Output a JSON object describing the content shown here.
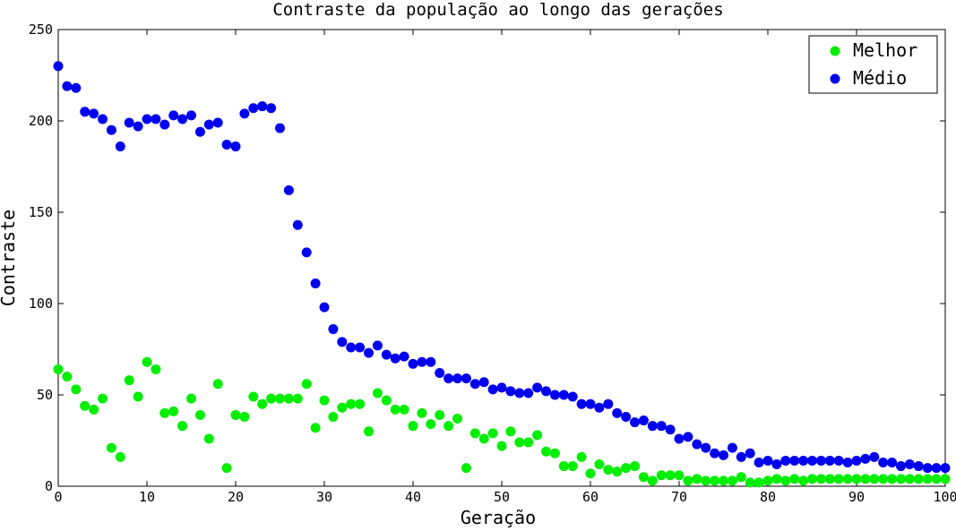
{
  "chart_data": {
    "type": "scatter",
    "title": "Contraste da população ao longo das gerações",
    "xlabel": "Geração",
    "ylabel": "Contraste",
    "xlim": [
      0,
      100
    ],
    "ylim": [
      0,
      250
    ],
    "xticks": [
      "0",
      "10",
      "20",
      "30",
      "40",
      "50",
      "60",
      "70",
      "80",
      "90",
      "100"
    ],
    "yticks": [
      "0",
      "50",
      "100",
      "150",
      "200",
      "250"
    ],
    "grid": false,
    "legend_position": "top-right",
    "x": [
      0,
      1,
      2,
      3,
      4,
      5,
      6,
      7,
      8,
      9,
      10,
      11,
      12,
      13,
      14,
      15,
      16,
      17,
      18,
      19,
      20,
      21,
      22,
      23,
      24,
      25,
      26,
      27,
      28,
      29,
      30,
      31,
      32,
      33,
      34,
      35,
      36,
      37,
      38,
      39,
      40,
      41,
      42,
      43,
      44,
      45,
      46,
      47,
      48,
      49,
      50,
      51,
      52,
      53,
      54,
      55,
      56,
      57,
      58,
      59,
      60,
      61,
      62,
      63,
      64,
      65,
      66,
      67,
      68,
      69,
      70,
      71,
      72,
      73,
      74,
      75,
      76,
      77,
      78,
      79,
      80,
      81,
      82,
      83,
      84,
      85,
      86,
      87,
      88,
      89,
      90,
      91,
      92,
      93,
      94,
      95,
      96,
      97,
      98,
      99,
      100
    ],
    "series": [
      {
        "name": "Melhor",
        "color": "#00ee00",
        "values": [
          64,
          60,
          53,
          44,
          42,
          48,
          21,
          16,
          58,
          49,
          68,
          64,
          40,
          41,
          33,
          48,
          39,
          26,
          56,
          10,
          39,
          38,
          49,
          45,
          48,
          48,
          48,
          48,
          56,
          32,
          47,
          38,
          43,
          45,
          45,
          30,
          51,
          47,
          42,
          42,
          33,
          40,
          34,
          39,
          33,
          37,
          10,
          29,
          26,
          29,
          22,
          30,
          24,
          24,
          28,
          19,
          18,
          11,
          11,
          16,
          7,
          12,
          9,
          8,
          10,
          11,
          5,
          3,
          6,
          6,
          6,
          3,
          4,
          3,
          3,
          3,
          3,
          5,
          2,
          2,
          3,
          4,
          3,
          4,
          3,
          4,
          4,
          4,
          4,
          4,
          4,
          4,
          4,
          4,
          4,
          4,
          4,
          4,
          4,
          4,
          4
        ]
      },
      {
        "name": "Médio",
        "color": "#0000ee",
        "values": [
          230,
          219,
          218,
          205,
          204,
          201,
          195,
          186,
          199,
          197,
          201,
          201,
          198,
          203,
          201,
          203,
          194,
          198,
          199,
          187,
          186,
          204,
          207,
          208,
          207,
          196,
          162,
          143,
          128,
          111,
          98,
          86,
          79,
          76,
          76,
          73,
          77,
          72,
          70,
          71,
          67,
          68,
          68,
          62,
          59,
          59,
          59,
          56,
          57,
          53,
          54,
          52,
          51,
          51,
          54,
          52,
          50,
          50,
          49,
          45,
          45,
          43,
          45,
          40,
          38,
          35,
          36,
          33,
          33,
          31,
          26,
          27,
          23,
          21,
          18,
          17,
          21,
          16,
          18,
          13,
          14,
          12,
          14,
          14,
          14,
          14,
          14,
          14,
          14,
          13,
          14,
          15,
          16,
          13,
          13,
          11,
          12,
          11,
          10,
          10,
          10
        ]
      }
    ]
  }
}
